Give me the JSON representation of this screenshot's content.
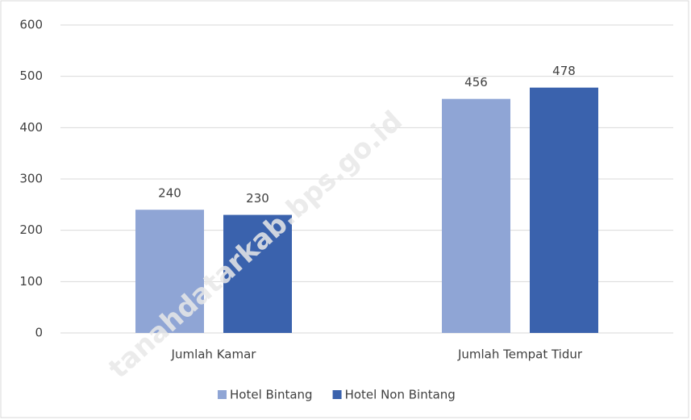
{
  "chart_data": {
    "type": "bar",
    "categories": [
      "Jumlah Kamar",
      "Jumlah Tempat Tidur"
    ],
    "series": [
      {
        "name": "Hotel Bintang",
        "color": "#8fa5d5",
        "values": [
          240,
          456
        ]
      },
      {
        "name": "Hotel Non Bintang",
        "color": "#3a62ad",
        "values": [
          230,
          478
        ]
      }
    ],
    "ylim": [
      0,
      600
    ],
    "yticks": [
      0,
      100,
      200,
      300,
      400,
      500,
      600
    ],
    "grid": true,
    "legend": "bottom",
    "watermark": "tanahdatarkab.bps.go.id"
  }
}
